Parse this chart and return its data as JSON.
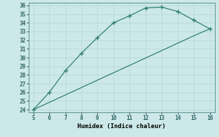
{
  "xlabel": "Humidex (Indice chaleur)",
  "line1_x": [
    5,
    6,
    7,
    8,
    9,
    10,
    11,
    12,
    13,
    14,
    15,
    16
  ],
  "line1_y": [
    24,
    26,
    28.5,
    30.5,
    32.3,
    34,
    34.8,
    35.7,
    35.8,
    35.3,
    34.3,
    33.3
  ],
  "line2_x": [
    5,
    6,
    7,
    8,
    9,
    10,
    11,
    12,
    13,
    14,
    15,
    16
  ],
  "line2_y": [
    24,
    24.85,
    25.7,
    26.55,
    27.4,
    28.25,
    29.1,
    29.95,
    30.8,
    31.65,
    32.5,
    33.3
  ],
  "color": "#2e7d6e",
  "bg_color": "#cce8e8",
  "grid_color": "#b8d8d8",
  "xlim": [
    5,
    16
  ],
  "ylim": [
    24,
    36
  ],
  "xticks": [
    5,
    6,
    7,
    8,
    9,
    10,
    11,
    12,
    13,
    14,
    15,
    16
  ],
  "yticks": [
    24,
    25,
    26,
    27,
    28,
    29,
    30,
    31,
    32,
    33,
    34,
    35,
    36
  ]
}
